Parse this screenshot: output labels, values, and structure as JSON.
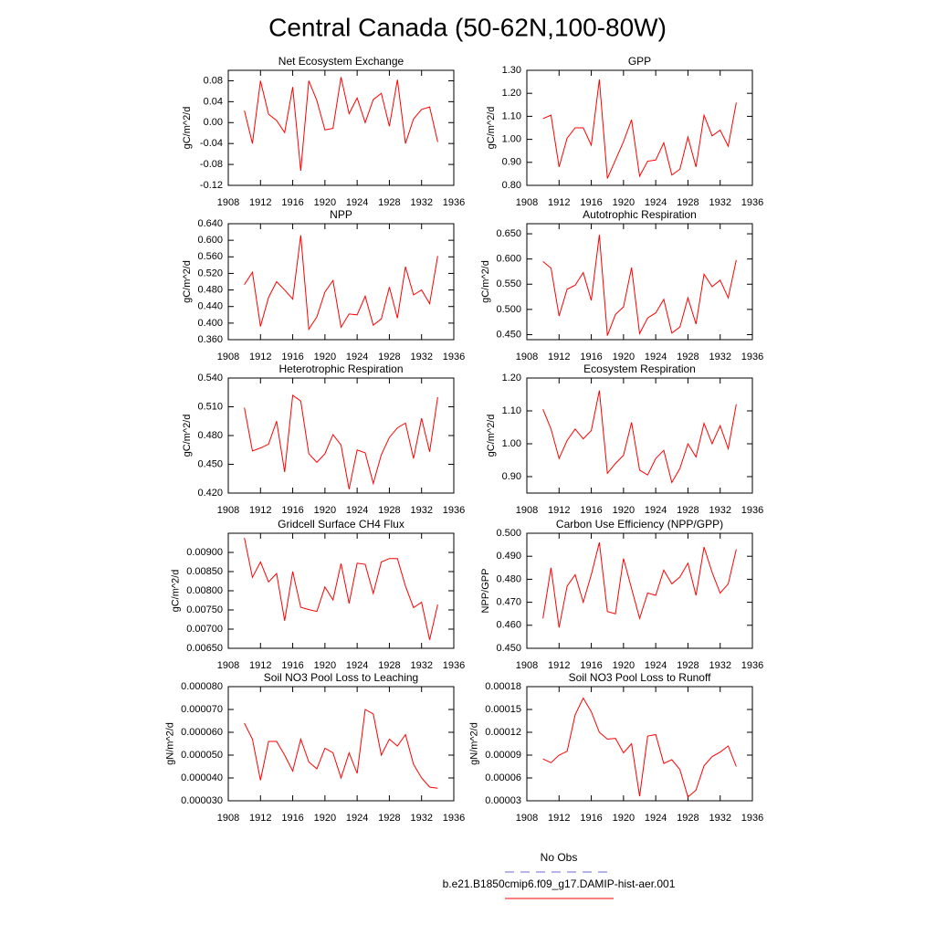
{
  "title": "Central Canada (50-62N,100-80W)",
  "legend": [
    {
      "name": "No Obs",
      "color": "#6a6ad8",
      "dash": true
    },
    {
      "name": "b.e21.B1850cmip6.f09_g17.DAMIP-hist-aer.001",
      "color": "#ff0000",
      "dash": false
    }
  ],
  "chart_data": [
    {
      "type": "line",
      "title": "Net Ecosystem Exchange",
      "ylabel": "gC/m^2/d",
      "color": "#ff0000",
      "x": [
        1910,
        1911,
        1912,
        1913,
        1914,
        1915,
        1916,
        1917,
        1918,
        1919,
        1920,
        1921,
        1922,
        1923,
        1924,
        1925,
        1926,
        1927,
        1928,
        1929,
        1930,
        1931,
        1932,
        1933,
        1934
      ],
      "values": [
        0.023,
        -0.04,
        0.08,
        0.016,
        0.004,
        -0.019,
        0.068,
        -0.092,
        0.08,
        0.042,
        -0.014,
        -0.011,
        0.087,
        0.017,
        0.047,
        0,
        0.044,
        0.056,
        -0.007,
        0.082,
        -0.04,
        0.007,
        0.025,
        0.03,
        -0.037
      ],
      "xlim": [
        1908,
        1936
      ],
      "xticks": [
        1908,
        1912,
        1916,
        1920,
        1924,
        1928,
        1932,
        1936
      ],
      "ylim": [
        -0.12,
        0.1
      ],
      "yticks": [
        -0.12,
        -0.08,
        -0.04,
        {
          "value": 0,
          "label": "0.00"
        },
        0.04,
        0.08
      ]
    },
    {
      "type": "line",
      "title": "GPP",
      "ylabel": "gC/m^2/d",
      "color": "#ff0000",
      "x": [
        1910,
        1911,
        1912,
        1913,
        1914,
        1915,
        1916,
        1917,
        1918,
        1919,
        1920,
        1921,
        1922,
        1923,
        1924,
        1925,
        1926,
        1927,
        1928,
        1929,
        1930,
        1931,
        1932,
        1933,
        1934
      ],
      "values": [
        1.09,
        1.105,
        0.88,
        1.005,
        1.05,
        1.05,
        0.975,
        1.26,
        0.83,
        0.91,
        0.99,
        1.085,
        0.84,
        0.905,
        0.91,
        0.985,
        0.845,
        0.87,
        1.01,
        0.88,
        1.105,
        1.015,
        1.04,
        0.97,
        1.16
      ],
      "xlim": [
        1908,
        1936
      ],
      "xticks": [
        1908,
        1912,
        1916,
        1920,
        1924,
        1928,
        1932,
        1936
      ],
      "ylim": [
        0.8,
        1.3
      ],
      "yticks": [
        {
          "value": 0.8,
          "label": "0.80"
        },
        {
          "value": 0.9,
          "label": "0.90"
        },
        {
          "value": 1,
          "label": "1.00"
        },
        {
          "value": 1.1,
          "label": "1.10"
        },
        {
          "value": 1.2,
          "label": "1.20"
        },
        {
          "value": 1.3,
          "label": "1.30"
        }
      ]
    },
    {
      "type": "line",
      "title": "NPP",
      "ylabel": "gC/m^2/d",
      "color": "#ff0000",
      "x": [
        1910,
        1911,
        1912,
        1913,
        1914,
        1915,
        1916,
        1917,
        1918,
        1919,
        1920,
        1921,
        1922,
        1923,
        1924,
        1925,
        1926,
        1927,
        1928,
        1929,
        1930,
        1931,
        1932,
        1933,
        1934
      ],
      "values": [
        0.493,
        0.523,
        0.392,
        0.462,
        0.5,
        0.48,
        0.458,
        0.612,
        0.385,
        0.415,
        0.475,
        0.503,
        0.39,
        0.422,
        0.42,
        0.465,
        0.395,
        0.41,
        0.487,
        0.412,
        0.536,
        0.468,
        0.48,
        0.447,
        0.562
      ],
      "xlim": [
        1908,
        1936
      ],
      "xticks": [
        1908,
        1912,
        1916,
        1920,
        1924,
        1928,
        1932,
        1936
      ],
      "ylim": [
        0.36,
        0.64
      ],
      "yticks": [
        {
          "value": 0.36,
          "label": "0.360"
        },
        {
          "value": 0.4,
          "label": "0.400"
        },
        {
          "value": 0.44,
          "label": "0.440"
        },
        {
          "value": 0.48,
          "label": "0.480"
        },
        {
          "value": 0.52,
          "label": "0.520"
        },
        {
          "value": 0.56,
          "label": "0.560"
        },
        {
          "value": 0.6,
          "label": "0.600"
        },
        {
          "value": 0.64,
          "label": "0.640"
        }
      ]
    },
    {
      "type": "line",
      "title": "Autotrophic Respiration",
      "ylabel": "gC/m^2/d",
      "color": "#ff0000",
      "x": [
        1910,
        1911,
        1912,
        1913,
        1914,
        1915,
        1916,
        1917,
        1918,
        1919,
        1920,
        1921,
        1922,
        1923,
        1924,
        1925,
        1926,
        1927,
        1928,
        1929,
        1930,
        1931,
        1932,
        1933,
        1934
      ],
      "values": [
        0.595,
        0.582,
        0.487,
        0.54,
        0.548,
        0.573,
        0.518,
        0.648,
        0.448,
        0.49,
        0.505,
        0.583,
        0.452,
        0.483,
        0.493,
        0.52,
        0.453,
        0.465,
        0.523,
        0.471,
        0.57,
        0.545,
        0.558,
        0.523,
        0.598
      ],
      "xlim": [
        1908,
        1936
      ],
      "xticks": [
        1908,
        1912,
        1916,
        1920,
        1924,
        1928,
        1932,
        1936
      ],
      "ylim": [
        0.44,
        0.67
      ],
      "yticks": [
        {
          "value": 0.45,
          "label": "0.450"
        },
        {
          "value": 0.5,
          "label": "0.500"
        },
        {
          "value": 0.55,
          "label": "0.550"
        },
        {
          "value": 0.6,
          "label": "0.600"
        },
        {
          "value": 0.65,
          "label": "0.650"
        }
      ]
    },
    {
      "type": "line",
      "title": "Heterotrophic Respiration",
      "ylabel": "gC/m^2/d",
      "color": "#ff0000",
      "x": [
        1910,
        1911,
        1912,
        1913,
        1914,
        1915,
        1916,
        1917,
        1918,
        1919,
        1920,
        1921,
        1922,
        1923,
        1924,
        1925,
        1926,
        1927,
        1928,
        1929,
        1930,
        1931,
        1932,
        1933,
        1934
      ],
      "values": [
        0.509,
        0.464,
        0.467,
        0.471,
        0.495,
        0.442,
        0.522,
        0.516,
        0.461,
        0.452,
        0.461,
        0.481,
        0.47,
        0.424,
        0.465,
        0.462,
        0.43,
        0.46,
        0.478,
        0.488,
        0.493,
        0.456,
        0.498,
        0.463,
        0.52
      ],
      "xlim": [
        1908,
        1936
      ],
      "xticks": [
        1908,
        1912,
        1916,
        1920,
        1924,
        1928,
        1932,
        1936
      ],
      "ylim": [
        0.42,
        0.54
      ],
      "yticks": [
        {
          "value": 0.42,
          "label": "0.420"
        },
        {
          "value": 0.45,
          "label": "0.450"
        },
        {
          "value": 0.48,
          "label": "0.480"
        },
        {
          "value": 0.51,
          "label": "0.510"
        },
        {
          "value": 0.54,
          "label": "0.540"
        }
      ]
    },
    {
      "type": "line",
      "title": "Ecosystem Respiration",
      "ylabel": "gC/m^2/d",
      "color": "#ff0000",
      "x": [
        1910,
        1911,
        1912,
        1913,
        1914,
        1915,
        1916,
        1917,
        1918,
        1919,
        1920,
        1921,
        1922,
        1923,
        1924,
        1925,
        1926,
        1927,
        1928,
        1929,
        1930,
        1931,
        1932,
        1933,
        1934
      ],
      "values": [
        1.105,
        1.045,
        0.955,
        1.01,
        1.045,
        1.015,
        1.04,
        1.162,
        0.91,
        0.94,
        0.965,
        1.065,
        0.92,
        0.905,
        0.955,
        0.98,
        0.882,
        0.925,
        1.0,
        0.96,
        1.062,
        1.0,
        1.055,
        0.985,
        1.12
      ],
      "xlim": [
        1908,
        1936
      ],
      "xticks": [
        1908,
        1912,
        1916,
        1920,
        1924,
        1928,
        1932,
        1936
      ],
      "ylim": [
        0.85,
        1.2
      ],
      "yticks": [
        {
          "value": 0.9,
          "label": "0.90"
        },
        {
          "value": 1,
          "label": "1.00"
        },
        {
          "value": 1.1,
          "label": "1.10"
        },
        {
          "value": 1.2,
          "label": "1.20"
        }
      ]
    },
    {
      "type": "line",
      "title": "Gridcell Surface CH4 Flux",
      "ylabel": "gC/m^2/d",
      "color": "#ff0000",
      "x": [
        1910,
        1911,
        1912,
        1913,
        1914,
        1915,
        1916,
        1917,
        1918,
        1919,
        1920,
        1921,
        1922,
        1923,
        1924,
        1925,
        1926,
        1927,
        1928,
        1929,
        1930,
        1931,
        1932,
        1933,
        1934
      ],
      "values": [
        0.00938,
        0.00835,
        0.00875,
        0.00823,
        0.00845,
        0.00722,
        0.0085,
        0.00757,
        0.00751,
        0.00746,
        0.0081,
        0.00776,
        0.00871,
        0.00767,
        0.00872,
        0.00869,
        0.00793,
        0.00875,
        0.00884,
        0.00884,
        0.00812,
        0.00756,
        0.0077,
        0.00672,
        0.00764
      ],
      "xlim": [
        1908,
        1936
      ],
      "xticks": [
        1908,
        1912,
        1916,
        1920,
        1924,
        1928,
        1932,
        1936
      ],
      "ylim": [
        0.0065,
        0.0095
      ],
      "yticks": [
        {
          "value": 0.0065,
          "label": "0.00650"
        },
        {
          "value": 0.007,
          "label": "0.00700"
        },
        {
          "value": 0.0075,
          "label": "0.00750"
        },
        {
          "value": 0.008,
          "label": "0.00800"
        },
        {
          "value": 0.0085,
          "label": "0.00850"
        },
        {
          "value": 0.009,
          "label": "0.00900"
        }
      ]
    },
    {
      "type": "line",
      "title": "Carbon Use Efficiency (NPP/GPP)",
      "ylabel": "NPP/GPP",
      "color": "#ff0000",
      "x": [
        1910,
        1911,
        1912,
        1913,
        1914,
        1915,
        1916,
        1917,
        1918,
        1919,
        1920,
        1921,
        1922,
        1923,
        1924,
        1925,
        1926,
        1927,
        1928,
        1929,
        1930,
        1931,
        1932,
        1933,
        1934
      ],
      "values": [
        0.463,
        0.485,
        0.459,
        0.477,
        0.482,
        0.47,
        0.482,
        0.496,
        0.466,
        0.465,
        0.489,
        0.476,
        0.463,
        0.474,
        0.473,
        0.484,
        0.478,
        0.481,
        0.487,
        0.473,
        0.494,
        0.483,
        0.474,
        0.478,
        0.493
      ],
      "xlim": [
        1908,
        1936
      ],
      "xticks": [
        1908,
        1912,
        1916,
        1920,
        1924,
        1928,
        1932,
        1936
      ],
      "ylim": [
        0.45,
        0.5
      ],
      "yticks": [
        {
          "value": 0.45,
          "label": "0.450"
        },
        {
          "value": 0.46,
          "label": "0.460"
        },
        {
          "value": 0.47,
          "label": "0.470"
        },
        {
          "value": 0.48,
          "label": "0.480"
        },
        {
          "value": 0.49,
          "label": "0.490"
        },
        {
          "value": 0.5,
          "label": "0.500"
        }
      ]
    },
    {
      "type": "line",
      "title": "Soil NO3 Pool Loss to Leaching",
      "ylabel": "gN/m^2/d",
      "color": "#ff0000",
      "x": [
        1910,
        1911,
        1912,
        1913,
        1914,
        1915,
        1916,
        1917,
        1918,
        1919,
        1920,
        1921,
        1922,
        1923,
        1924,
        1925,
        1926,
        1927,
        1928,
        1929,
        1930,
        1931,
        1932,
        1933,
        1934
      ],
      "values": [
        6.4e-05,
        5.7e-05,
        3.9e-05,
        5.6e-05,
        5.6e-05,
        5e-05,
        4.3e-05,
        5.7e-05,
        4.7e-05,
        4.4e-05,
        5.3e-05,
        5.1e-05,
        4e-05,
        5.1e-05,
        4.2e-05,
        7e-05,
        6.8e-05,
        5e-05,
        5.7e-05,
        5.4e-05,
        5.9e-05,
        4.6e-05,
        4e-05,
        3.6e-05,
        3.55e-05
      ],
      "xlim": [
        1908,
        1936
      ],
      "xticks": [
        1908,
        1912,
        1916,
        1920,
        1924,
        1928,
        1932,
        1936
      ],
      "ylim": [
        3e-05,
        8e-05
      ],
      "yticks": [
        {
          "value": 3e-05,
          "label": "0.000030"
        },
        {
          "value": 4e-05,
          "label": "0.000040"
        },
        {
          "value": 5e-05,
          "label": "0.000050"
        },
        {
          "value": 6e-05,
          "label": "0.000060"
        },
        {
          "value": 7e-05,
          "label": "0.000070"
        },
        {
          "value": 8e-05,
          "label": "0.000080"
        }
      ]
    },
    {
      "type": "line",
      "title": "Soil NO3 Pool Loss to Runoff",
      "ylabel": "gN/m^2/d",
      "color": "#ff0000",
      "x": [
        1910,
        1911,
        1912,
        1913,
        1914,
        1915,
        1916,
        1917,
        1918,
        1919,
        1920,
        1921,
        1922,
        1923,
        1924,
        1925,
        1926,
        1927,
        1928,
        1929,
        1930,
        1931,
        1932,
        1933,
        1934
      ],
      "values": [
        8.5e-05,
        8e-05,
        9e-05,
        9.5e-05,
        0.000143,
        0.000165,
        0.000147,
        0.00012,
        0.000111,
        0.000112,
        9.3e-05,
        0.000105,
        3.6e-05,
        0.000115,
        0.000117,
        7.9e-05,
        8.4e-05,
        7.1e-05,
        3.5e-05,
        4.4e-05,
        7.6e-05,
        8.8e-05,
        9.4e-05,
        0.000102,
        7.5e-05
      ],
      "xlim": [
        1908,
        1936
      ],
      "xticks": [
        1908,
        1912,
        1916,
        1920,
        1924,
        1928,
        1932,
        1936
      ],
      "ylim": [
        3e-05,
        0.00018
      ],
      "yticks": [
        {
          "value": 3e-05,
          "label": "0.00003"
        },
        {
          "value": 6e-05,
          "label": "0.00006"
        },
        {
          "value": 9e-05,
          "label": "0.00009"
        },
        {
          "value": 0.00012,
          "label": "0.00012"
        },
        {
          "value": 0.00015,
          "label": "0.00015"
        },
        {
          "value": 0.00018,
          "label": "0.00018"
        }
      ]
    }
  ]
}
